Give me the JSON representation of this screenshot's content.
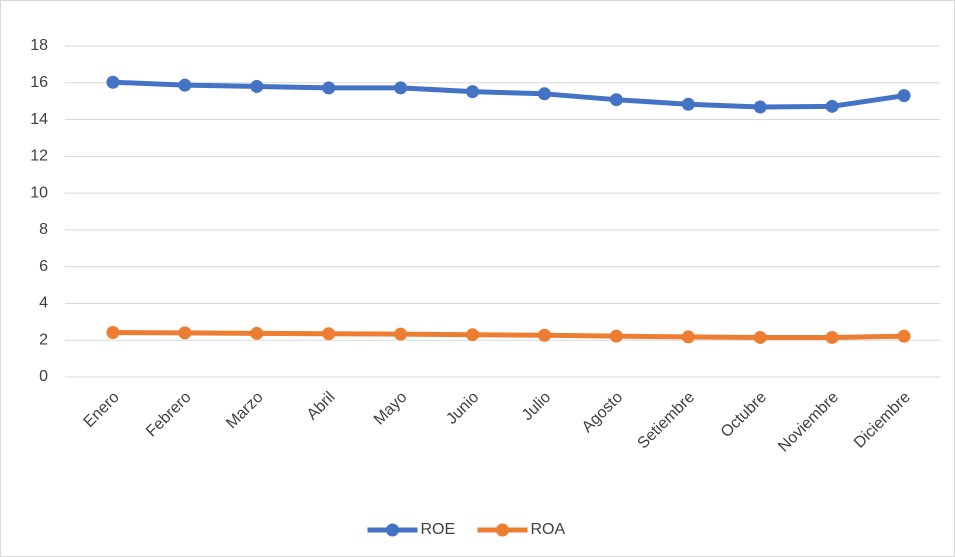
{
  "chart_data": {
    "type": "line",
    "categories": [
      "Enero",
      "Febrero",
      "Marzo",
      "Abril",
      "Mayo",
      "Junio",
      "Julio",
      "Agosto",
      "Setiembre",
      "Octubre",
      "Noviembre",
      "Diciembre"
    ],
    "series": [
      {
        "name": "ROE",
        "color": "#4472c4",
        "values": [
          16.03,
          15.87,
          15.8,
          15.72,
          15.72,
          15.52,
          15.4,
          15.08,
          14.83,
          14.68,
          14.72,
          15.3
        ]
      },
      {
        "name": "ROA",
        "color": "#ed7d31",
        "values": [
          2.42,
          2.4,
          2.37,
          2.35,
          2.33,
          2.3,
          2.27,
          2.22,
          2.18,
          2.15,
          2.15,
          2.22
        ]
      }
    ],
    "ylim": [
      0,
      18
    ],
    "yticks": [
      0,
      2,
      4,
      6,
      8,
      10,
      12,
      14,
      16,
      18
    ],
    "grid": true,
    "legend": "bottom"
  }
}
